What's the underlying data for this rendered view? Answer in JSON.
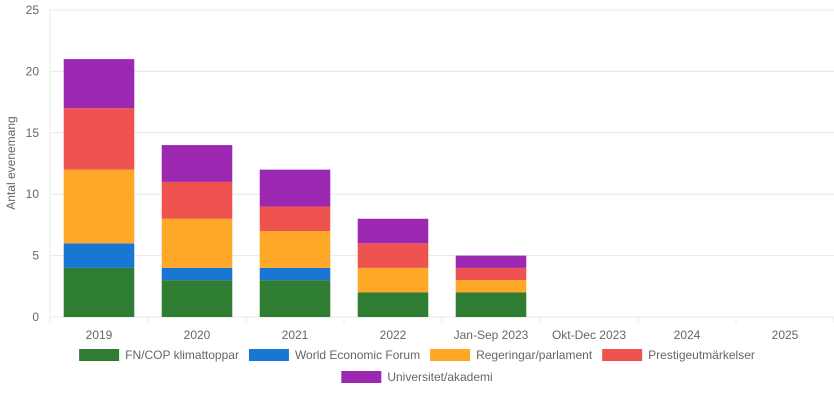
{
  "chart_data": {
    "type": "bar",
    "stacked": true,
    "ylabel": "Antal evenemang",
    "xlabel": "",
    "ylim": [
      0,
      25
    ],
    "yticks": [
      0,
      5,
      10,
      15,
      20,
      25
    ],
    "grid": true,
    "legend_position": "bottom",
    "categories": [
      "2019",
      "2020",
      "2021",
      "2022",
      "Jan-Sep 2023",
      "Okt-Dec 2023",
      "2024",
      "2025"
    ],
    "series": [
      {
        "name": "FN/COP klimattoppar",
        "color": "#2e7d32",
        "values": [
          4,
          3,
          3,
          2,
          2,
          0,
          0,
          0
        ]
      },
      {
        "name": "World Economic Forum",
        "color": "#1976d2",
        "values": [
          2,
          1,
          1,
          0,
          0,
          0,
          0,
          0
        ]
      },
      {
        "name": "Regeringar/parlament",
        "color": "#ffa726",
        "values": [
          6,
          4,
          3,
          2,
          1,
          0,
          0,
          0
        ]
      },
      {
        "name": "Prestigeutmärkelser",
        "color": "#ef5350",
        "values": [
          5,
          3,
          2,
          2,
          1,
          0,
          0,
          0
        ]
      },
      {
        "name": "Universitet/akademi",
        "color": "#9c27b0",
        "values": [
          4,
          3,
          3,
          2,
          1,
          0,
          0,
          0
        ]
      }
    ]
  }
}
